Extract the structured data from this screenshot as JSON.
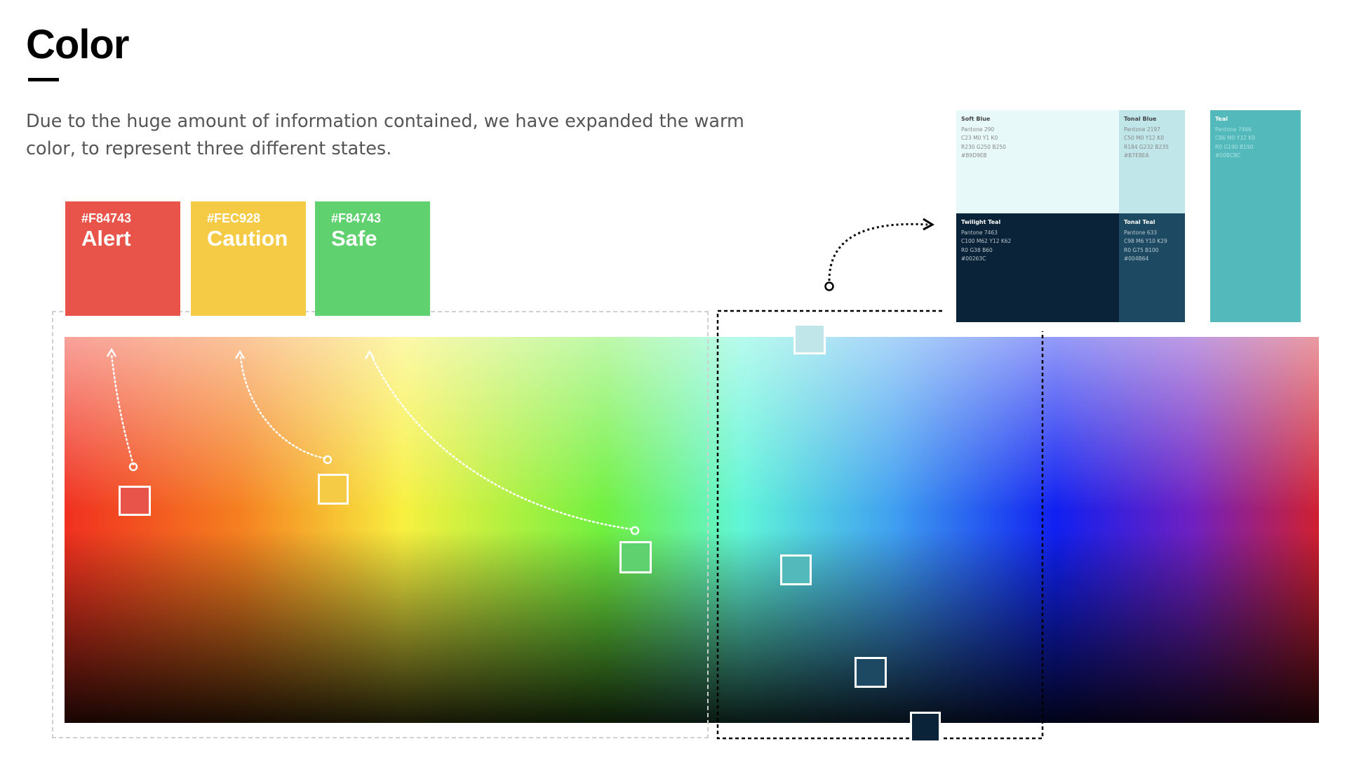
{
  "header": {
    "title": "Color",
    "description": "Due to the huge amount of information contained, we have expanded the warm color, to represent three different states."
  },
  "states": [
    {
      "hex": "#F84743",
      "name": "Alert",
      "color": "#e8534a"
    },
    {
      "hex": "#FEC928",
      "name": "Caution",
      "color": "#f5cb45"
    },
    {
      "hex": "#F84743",
      "name": "Safe",
      "color": "#5fd16e"
    }
  ],
  "palette": [
    {
      "name": "Soft Blue",
      "pantone": "Pantone 290",
      "cmyk": "C23 M0 Y1 K0",
      "rgb": "R230 G250 B250",
      "hex": "#B9D9EB",
      "color": "#e8f9f9"
    },
    {
      "name": "Tonal Blue",
      "pantone": "Pantone 2197",
      "cmyk": "C50 M0 Y12 K0",
      "rgb": "R184 G232 B235",
      "hex": "#B7E8EA",
      "color": "#c0e6e9"
    },
    {
      "name": "Teal",
      "pantone": "Pantone 7466",
      "cmyk": "C86 M0 Y32 K0",
      "rgb": "R0 G190 B190",
      "hex": "#00BCBC",
      "color": "#53b9bb"
    },
    {
      "name": "Twilight Teal",
      "pantone": "Pantone 7463",
      "cmyk": "C100 M62 Y12 K62",
      "rgb": "R0 G38 B60",
      "hex": "#00263C",
      "color": "#0b2338"
    },
    {
      "name": "Tonal Teal",
      "pantone": "Pantone 633",
      "cmyk": "C98 M6 Y10 K29",
      "rgb": "R0 G75 B100",
      "hex": "#004B64",
      "color": "#1d4a62"
    }
  ]
}
